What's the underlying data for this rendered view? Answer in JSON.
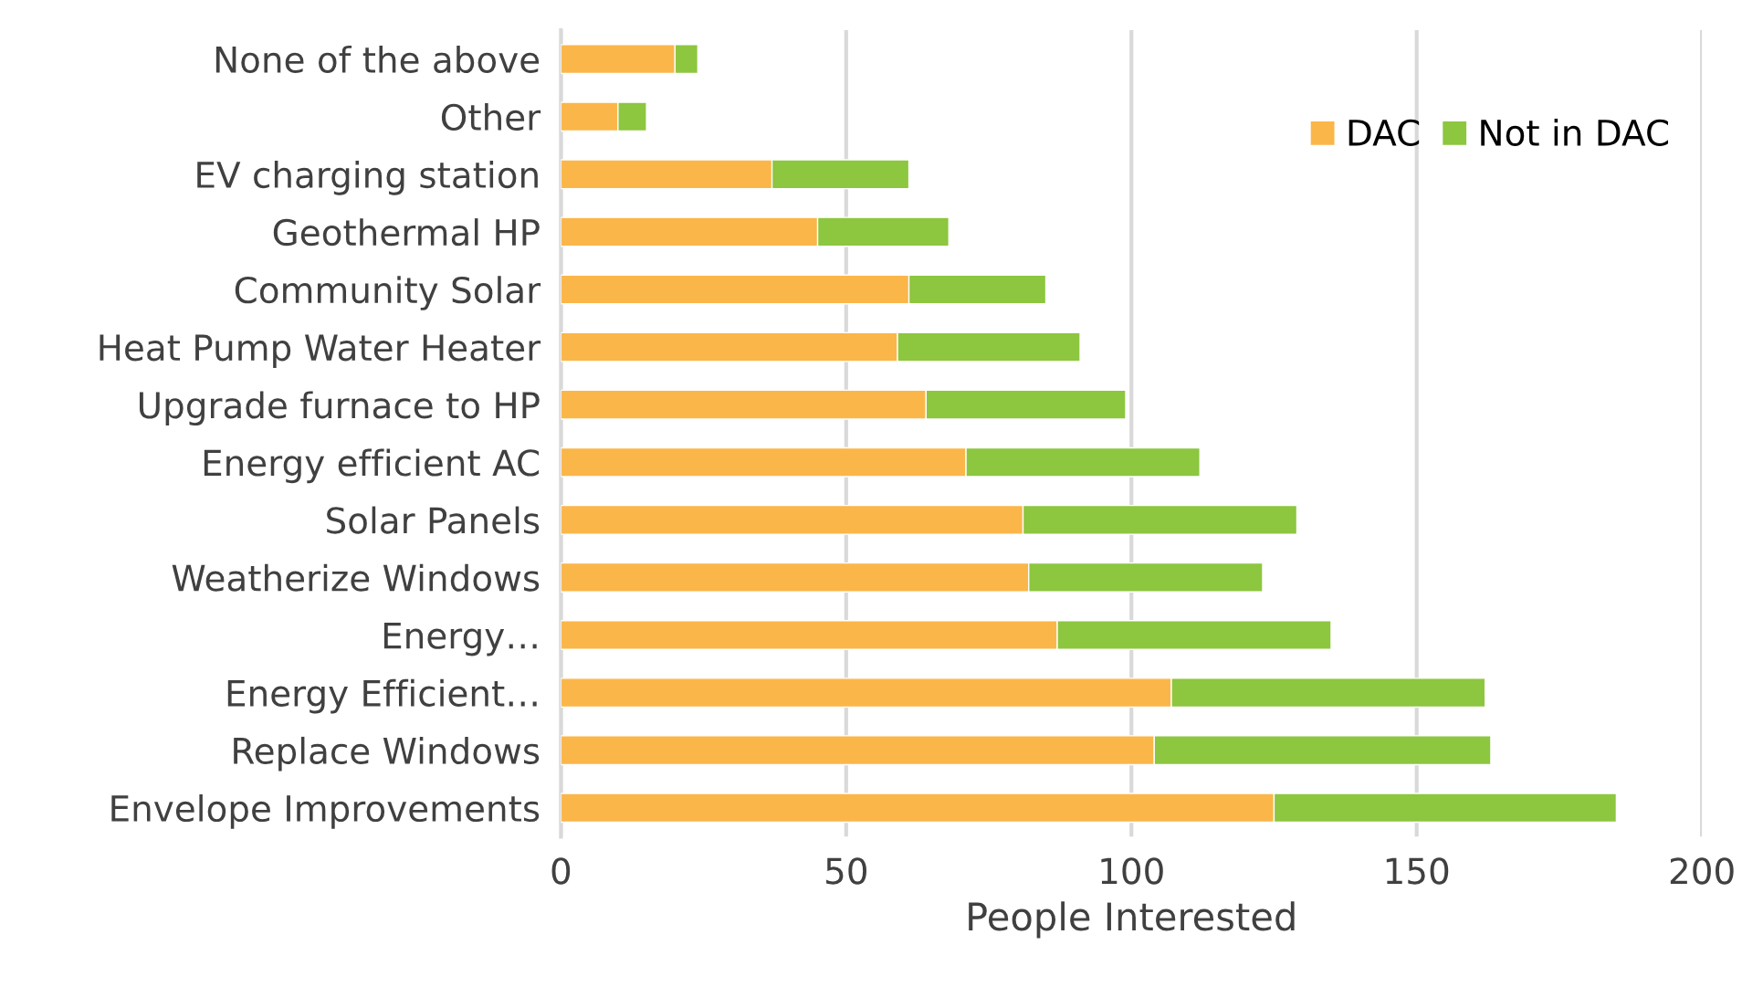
{
  "chart_data": {
    "type": "bar",
    "orientation": "horizontal",
    "stacked": true,
    "xlabel": "People Interested",
    "categories": [
      "None of the above",
      "Other",
      "EV charging station",
      "Geothermal HP",
      "Community Solar",
      "Heat Pump Water Heater",
      "Upgrade furnace to HP",
      "Energy efficient AC",
      "Solar Panels",
      "Weatherize Windows",
      "Energy…",
      "Energy Efficient…",
      "Replace Windows",
      "Envelope Improvements"
    ],
    "series": [
      {
        "name": "DAC",
        "color": "#fbb649",
        "values": [
          20,
          10,
          37,
          45,
          61,
          59,
          64,
          71,
          81,
          82,
          87,
          107,
          104,
          125
        ]
      },
      {
        "name": "Not in DAC",
        "color": "#8dc63f",
        "values": [
          4,
          5,
          24,
          23,
          24,
          32,
          35,
          41,
          48,
          41,
          48,
          55,
          59,
          60
        ]
      }
    ],
    "xlim": [
      0,
      200
    ],
    "xticks": [
      0,
      50,
      100,
      150,
      200
    ],
    "grid": "x",
    "legend": "top right"
  }
}
